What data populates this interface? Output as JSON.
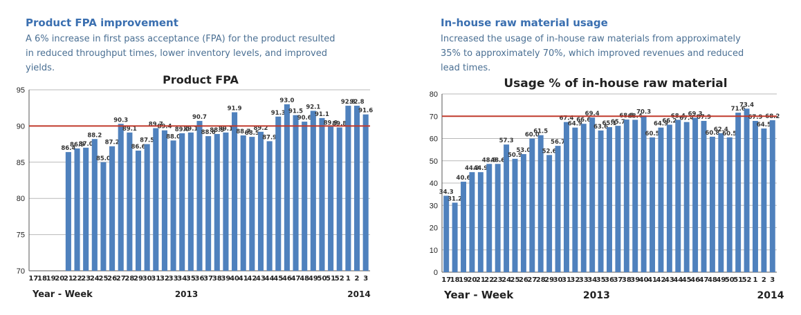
{
  "left": {
    "heading": "Product FPA improvement",
    "desc_lines": [
      "A 6% increase in first pass acceptance (FPA) for the product resulted",
      "in reduced throughput times, lower inventory levels, and improved",
      "yields."
    ]
  },
  "right": {
    "heading": "In-house raw material usage",
    "desc_lines": [
      "Increased the usage of in-house raw materials from approximately",
      "35% to approximately 70%, which improved revenues and reduced",
      "lead times."
    ]
  },
  "colors": {
    "bar": "#4f81bd",
    "target_line": "#c0392b",
    "grid": "#b8b8b8",
    "heading": "#3a6fb0"
  },
  "chart_data": [
    {
      "type": "bar",
      "title": "Product FPA",
      "categories": [
        "17",
        "18",
        "19",
        "20",
        "21",
        "22",
        "23",
        "24",
        "25",
        "26",
        "27",
        "28",
        "29",
        "30",
        "31",
        "32",
        "33",
        "34",
        "35",
        "36",
        "37",
        "38",
        "39",
        "40",
        "41",
        "42",
        "43",
        "44",
        "45",
        "46",
        "47",
        "48",
        "49",
        "50",
        "51",
        "52",
        "1",
        "2",
        "3"
      ],
      "values": [
        null,
        null,
        null,
        null,
        86.4,
        86.9,
        87.0,
        88.2,
        85.0,
        87.2,
        90.3,
        89.1,
        86.6,
        87.5,
        89.7,
        89.4,
        88.0,
        89.0,
        89.1,
        90.7,
        88.6,
        88.9,
        89.1,
        91.9,
        88.7,
        88.5,
        89.2,
        87.9,
        91.3,
        93.0,
        91.5,
        90.6,
        92.1,
        91.1,
        89.9,
        89.8,
        92.8,
        92.8,
        91.6
      ],
      "ylim": [
        70,
        95
      ],
      "yticks": [
        70,
        75,
        80,
        85,
        90,
        95
      ],
      "target": 90,
      "grid": true,
      "xlabel": "Year - Week",
      "year_labels": [
        "2013",
        "2014"
      ]
    },
    {
      "type": "bar",
      "title": "Usage % of in-house raw material",
      "categories": [
        "17",
        "18",
        "19",
        "20",
        "21",
        "22",
        "23",
        "24",
        "25",
        "26",
        "27",
        "28",
        "29",
        "30",
        "31",
        "32",
        "33",
        "34",
        "35",
        "36",
        "37",
        "38",
        "39",
        "40",
        "41",
        "42",
        "43",
        "44",
        "45",
        "46",
        "47",
        "48",
        "49",
        "50",
        "51",
        "52",
        "1",
        "2",
        "3"
      ],
      "values": [
        34.3,
        31.2,
        40.6,
        44.9,
        44.9,
        48.6,
        48.6,
        57.3,
        50.9,
        53.0,
        60.0,
        61.5,
        52.6,
        56.7,
        67.4,
        64.9,
        66.6,
        69.4,
        63.6,
        65.1,
        65.7,
        68.5,
        68.4,
        70.3,
        60.5,
        64.9,
        66.2,
        68.4,
        67.4,
        69.3,
        67.9,
        60.8,
        62.4,
        60.5,
        71.6,
        73.4,
        67.9,
        64.5,
        68.2
      ],
      "ylim": [
        0,
        80
      ],
      "yticks": [
        0,
        10,
        20,
        30,
        40,
        50,
        60,
        70,
        80
      ],
      "target": 70,
      "grid": true,
      "xlabel": "Year - Week",
      "year_labels": [
        "2013",
        "2014"
      ]
    }
  ]
}
